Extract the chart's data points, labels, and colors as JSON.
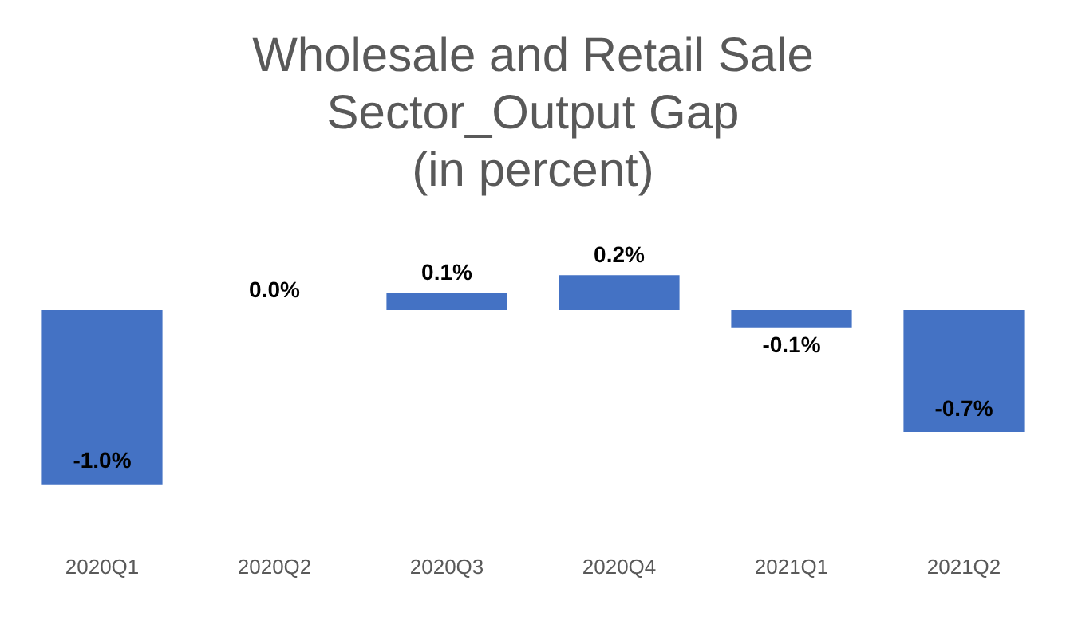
{
  "chart_data": {
    "type": "bar",
    "title": "Wholesale and Retail Sale\nSector_Output Gap\n(in percent)",
    "categories": [
      "2020Q1",
      "2020Q2",
      "2020Q3",
      "2020Q4",
      "2021Q1",
      "2021Q2"
    ],
    "values": [
      -1.0,
      0.0,
      0.1,
      0.2,
      -0.1,
      -0.7
    ],
    "value_labels": [
      "-1.0%",
      "0.0%",
      "0.1%",
      "0.2%",
      "-0.1%",
      "-0.7%"
    ],
    "color": "#4472c4",
    "grid": false,
    "legend": false
  }
}
